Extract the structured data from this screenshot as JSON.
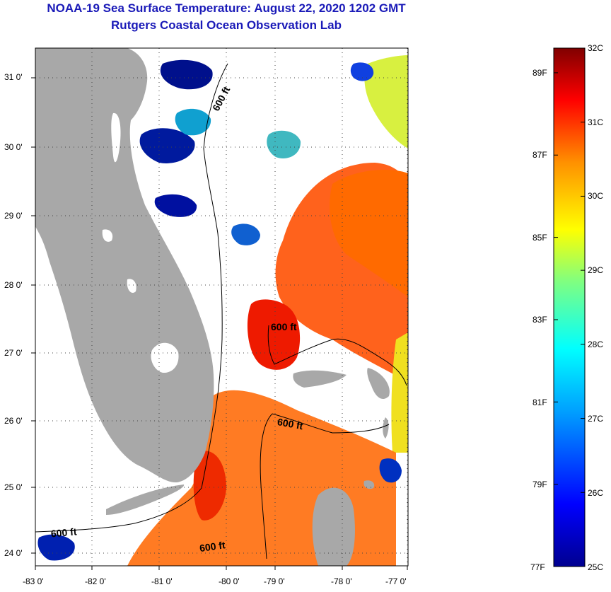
{
  "title": {
    "line1": "NOAA-19 Sea Surface Temperature:  August 22, 2020 1202 GMT",
    "line2": "Rutgers Coastal Ocean Observation Lab"
  },
  "map": {
    "lat_labels": [
      "31 0'",
      "30 0'",
      "29 0'",
      "28 0'",
      "27 0'",
      "26 0'",
      "25 0'",
      "24 0'"
    ],
    "lon_labels": [
      "-83 0'",
      "-82 0'",
      "-81 0'",
      "-80 0'",
      "-79 0'",
      "-78 0'",
      "-77 0'"
    ],
    "isobath_labels": [
      "600 ft",
      "600 ft",
      "600 ft",
      "600 ft",
      "600 ft"
    ],
    "colors": {
      "land": "#a8a8a8",
      "cloud": "#ffffff",
      "frame": "#000000"
    }
  },
  "colorbar": {
    "celsius": [
      "32C",
      "31C",
      "30C",
      "29C",
      "28C",
      "27C",
      "26C",
      "25C"
    ],
    "fahrenheit": [
      "89F",
      "87F",
      "85F",
      "83F",
      "81F",
      "79F",
      "77F"
    ],
    "range_c": [
      25,
      32
    ]
  }
}
